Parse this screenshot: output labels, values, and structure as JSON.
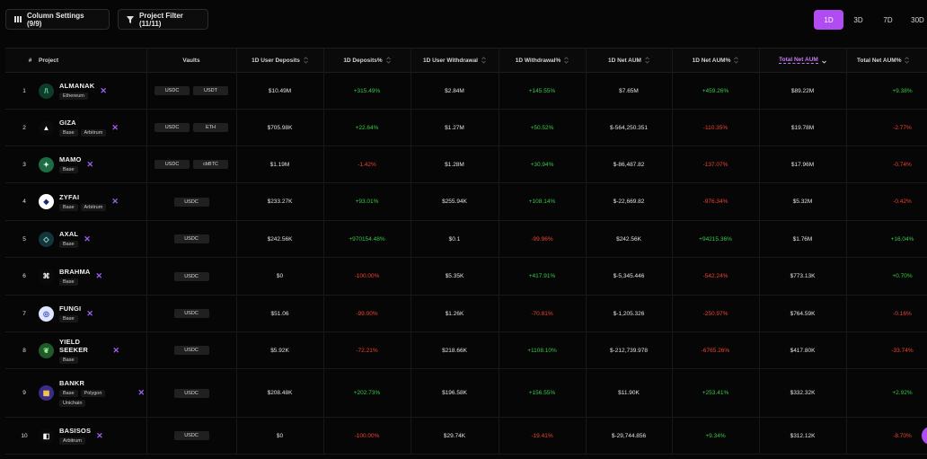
{
  "toolbar": {
    "columns_label": "Column Settings (9/9)",
    "filter_label": "Project Filter (11/11)"
  },
  "periods": [
    {
      "label": "1D",
      "active": true
    },
    {
      "label": "3D",
      "active": false
    },
    {
      "label": "7D",
      "active": false
    },
    {
      "label": "30D",
      "active": false
    }
  ],
  "columns": [
    "#",
    "Project",
    "Vaults",
    "1D User Deposits",
    "1D Deposits%",
    "1D User Withdrawal",
    "1D Withdrawal%",
    "1D Net AUM",
    "1D Net AUM%",
    "Total Net AUM",
    "Total Net AUM%"
  ],
  "rows": [
    {
      "num": "1",
      "name": "ALMANAK",
      "chains": [
        "Ethereum"
      ],
      "vaults": [
        "USDC",
        "USDT"
      ],
      "deposits": "$10.49M",
      "deposits_pct": "+315.49%",
      "withdrawal": "$2.84M",
      "withdrawal_pct": "+145.55%",
      "net_aum": "$7.65M",
      "net_aum_pct": "+459.26%",
      "total_aum": "$89.22M",
      "total_aum_pct": "+9.38%"
    },
    {
      "num": "2",
      "name": "GIZA",
      "chains": [
        "Base",
        "Arbitrum"
      ],
      "vaults": [
        "USDC",
        "ETH"
      ],
      "deposits": "$705.98K",
      "deposits_pct": "+22.64%",
      "withdrawal": "$1.27M",
      "withdrawal_pct": "+50.52%",
      "net_aum": "$-564,250.351",
      "net_aum_pct": "-110.35%",
      "total_aum": "$19.78M",
      "total_aum_pct": "-2.77%"
    },
    {
      "num": "3",
      "name": "MAMO",
      "chains": [
        "Base"
      ],
      "vaults": [
        "USDC",
        "cbBTC"
      ],
      "deposits": "$1.19M",
      "deposits_pct": "-1.42%",
      "withdrawal": "$1.28M",
      "withdrawal_pct": "+30.94%",
      "net_aum": "$-86,487.82",
      "net_aum_pct": "-137.07%",
      "total_aum": "$17.96M",
      "total_aum_pct": "-0.74%"
    },
    {
      "num": "4",
      "name": "ZYFAI",
      "chains": [
        "Base",
        "Arbitrum"
      ],
      "vaults": [
        "USDC"
      ],
      "deposits": "$233.27K",
      "deposits_pct": "+93.01%",
      "withdrawal": "$255.94K",
      "withdrawal_pct": "+108.14%",
      "net_aum": "$-22,669.82",
      "net_aum_pct": "-976.34%",
      "total_aum": "$5.32M",
      "total_aum_pct": "-0.42%"
    },
    {
      "num": "5",
      "name": "AXAL",
      "chains": [
        "Base"
      ],
      "vaults": [
        "USDC"
      ],
      "deposits": "$242.56K",
      "deposits_pct": "+970154.48%",
      "withdrawal": "$0.1",
      "withdrawal_pct": "-99.96%",
      "net_aum": "$242.56K",
      "net_aum_pct": "+94215.36%",
      "total_aum": "$1.76M",
      "total_aum_pct": "+16.04%"
    },
    {
      "num": "6",
      "name": "BRAHMA",
      "chains": [
        "Base"
      ],
      "vaults": [
        "USDC"
      ],
      "deposits": "$0",
      "deposits_pct": "-100.00%",
      "withdrawal": "$5.35K",
      "withdrawal_pct": "+417.91%",
      "net_aum": "$-5,345.446",
      "net_aum_pct": "-542.24%",
      "total_aum": "$773.13K",
      "total_aum_pct": "+0.70%"
    },
    {
      "num": "7",
      "name": "FUNGI",
      "chains": [
        "Base"
      ],
      "vaults": [
        "USDC"
      ],
      "deposits": "$51.06",
      "deposits_pct": "-99.00%",
      "withdrawal": "$1.26K",
      "withdrawal_pct": "-70.81%",
      "net_aum": "$-1,205.326",
      "net_aum_pct": "-250.97%",
      "total_aum": "$764.59K",
      "total_aum_pct": "-0.16%"
    },
    {
      "num": "8",
      "name": "YIELD SEEKER",
      "chains": [
        "Base"
      ],
      "vaults": [
        "USDC"
      ],
      "deposits": "$5.92K",
      "deposits_pct": "-72.21%",
      "withdrawal": "$218.66K",
      "withdrawal_pct": "+1108.10%",
      "net_aum": "$-212,739.978",
      "net_aum_pct": "-6765.26%",
      "total_aum": "$417.80K",
      "total_aum_pct": "-33.74%"
    },
    {
      "num": "9",
      "name": "BANKR",
      "chains": [
        "Base",
        "Polygon",
        "Unichain"
      ],
      "vaults": [
        "USDC"
      ],
      "deposits": "$208.48K",
      "deposits_pct": "+202.73%",
      "withdrawal": "$196.58K",
      "withdrawal_pct": "+156.55%",
      "net_aum": "$11.90K",
      "net_aum_pct": "+253.41%",
      "total_aum": "$332.32K",
      "total_aum_pct": "+2.92%"
    },
    {
      "num": "10",
      "name": "BASISOS",
      "chains": [
        "Arbitrum"
      ],
      "vaults": [
        "USDC"
      ],
      "deposits": "$0",
      "deposits_pct": "-100.00%",
      "withdrawal": "$29.74K",
      "withdrawal_pct": "-19.41%",
      "net_aum": "$-29,744.856",
      "net_aum_pct": "+9.34%",
      "total_aum": "$312.12K",
      "total_aum_pct": "-8.70%"
    }
  ],
  "colors": {
    "accent": "#b14cf2",
    "positive": "#38c947",
    "negative": "#f0432d",
    "x_icon": "#a45ef0"
  }
}
